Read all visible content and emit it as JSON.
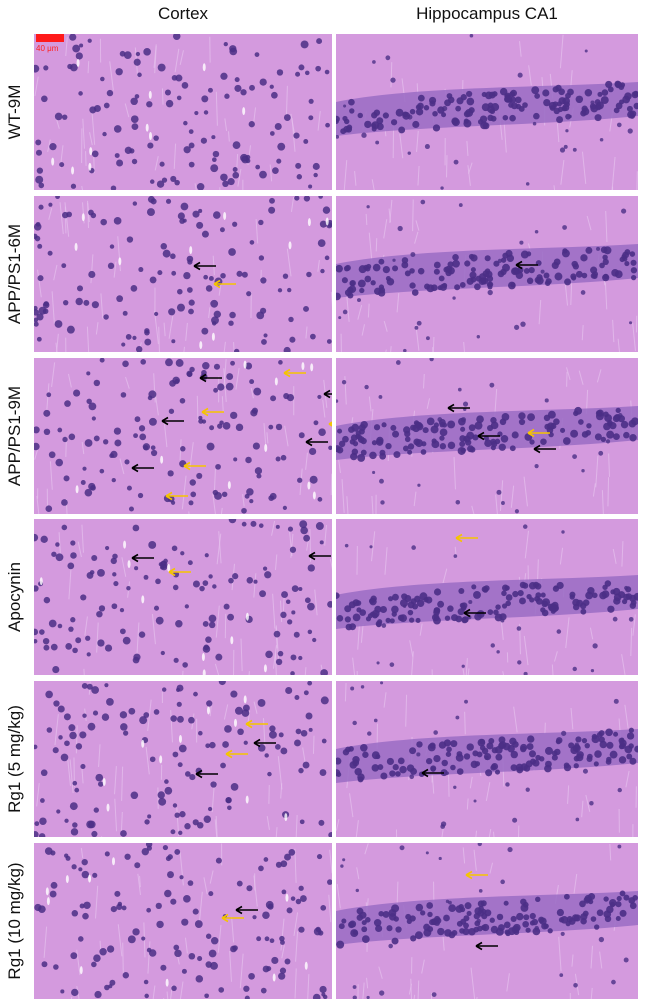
{
  "columns": [
    "Cortex",
    "Hippocampus CA1"
  ],
  "rows": [
    {
      "label": "WT-9M"
    },
    {
      "label": "APP/PS1-6M"
    },
    {
      "label": "APP/PS1-9M"
    },
    {
      "label": "Apocynin"
    },
    {
      "label": "Rg1 (5 mg/kg)"
    },
    {
      "label": "Rg1 (10 mg/kg)"
    }
  ],
  "scale_bar": {
    "text": "40 μm"
  },
  "colors": {
    "background_tissue": "#d49ade",
    "nucleus": "#4b2f86",
    "black_arrow": "#000000",
    "yellow_arrow": "#f5c400",
    "scale_bar": "#ff1a1a"
  },
  "arrow_legend": {
    "black": "black-arrow-icon",
    "yellow": "yellow-arrow-icon"
  }
}
